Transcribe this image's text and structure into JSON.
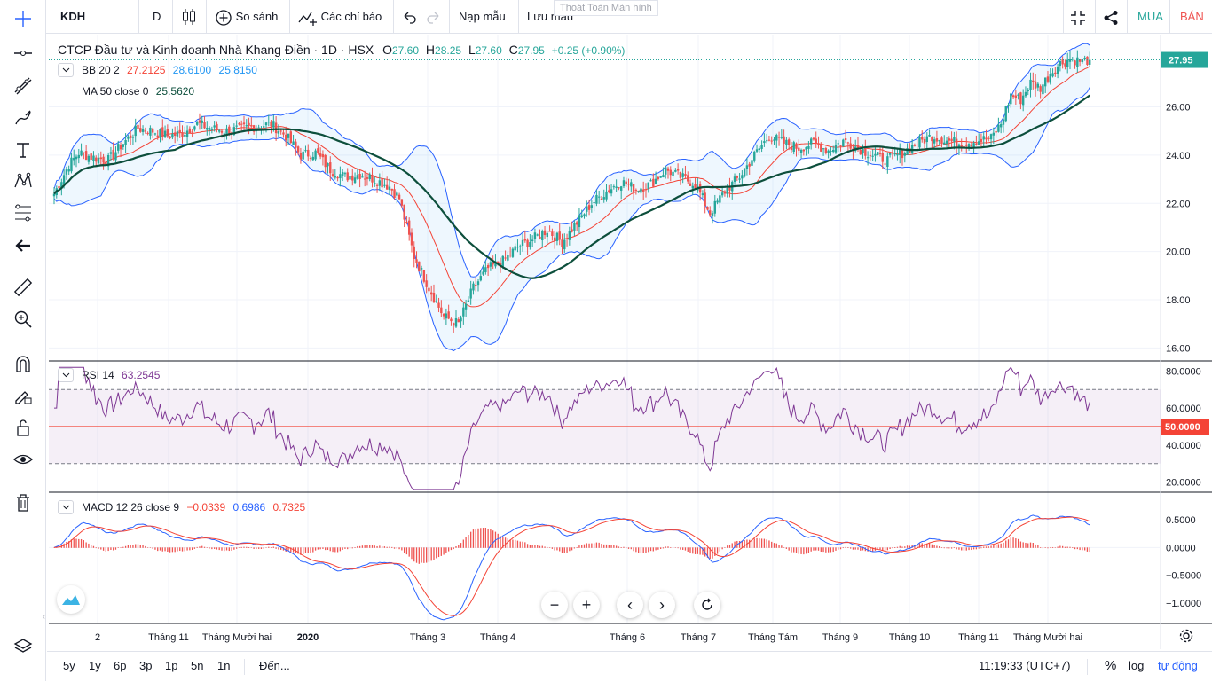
{
  "toolbar": {
    "symbol": "KDH",
    "interval": "D",
    "compare": "So sánh",
    "indicators": "Các chỉ báo",
    "templates": "Nạp mẫu",
    "save": "Lưu mẫu",
    "tooltip_fullscreen": "Thoát Toàn Màn hình",
    "buy": "MUA",
    "sell": "BÁN",
    "colors": {
      "buy": "#26a69a",
      "sell": "#ef5350"
    }
  },
  "left_tools": [
    "crosshair-icon",
    "horizontal-line-icon",
    "trend-tools-icon",
    "brush-icon",
    "text-icon",
    "pattern-icon",
    "fib-icon",
    "back-arrow-icon",
    "ruler-icon",
    "zoom-in-icon",
    "magnet-icon",
    "lock-draw-icon",
    "lock-icon",
    "eye-icon",
    "trash-icon",
    "layers-icon"
  ],
  "legend": {
    "title": "CTCP Đầu tư và Kinh doanh Nhà Khang Điền · 1D · HSX",
    "o_label": "O",
    "o": "27.60",
    "h_label": "H",
    "h": "28.25",
    "l_label": "L",
    "l": "27.60",
    "c_label": "C",
    "c": "27.95",
    "chg": "+0.25 (+0.90%)",
    "bb_name": "BB 20 2",
    "bb_basis": "27.2125",
    "bb_upper": "28.6100",
    "bb_lower": "25.8150",
    "ma_name": "MA 50 close 0",
    "ma_val": "25.5620",
    "rsi_name": "RSI 14",
    "rsi_val": "63.2545",
    "macd_name": "MACD 12 26 close 9",
    "macd_hist": "−0.0339",
    "macd_val": "0.6986",
    "macd_sig": "0.7325"
  },
  "bottom": {
    "ranges": [
      "5y",
      "1y",
      "6p",
      "3p",
      "1p",
      "5n",
      "1n"
    ],
    "goto": "Đến...",
    "clock": "11:19:33 (UTC+7)",
    "pct": "%",
    "log": "log",
    "auto": "tự động"
  },
  "chart_data": {
    "type": "candlestick",
    "title": "CTCP Đầu tư và Kinh doanh Nhà Khang Điền · 1D · HSX",
    "last_price": "27.95",
    "price_axis": {
      "min": 15.5,
      "max": 29.0,
      "ticks": [
        "26.00",
        "24.00",
        "22.00",
        "20.00",
        "18.00",
        "16.00"
      ]
    },
    "x_labels": [
      "2",
      "Tháng 11",
      "Tháng Mười hai",
      "2020",
      "Tháng 3",
      "Tháng 4",
      "Tháng 6",
      "Tháng 7",
      "Tháng Tám",
      "Tháng 9",
      "Tháng 10",
      "Tháng 11",
      "Tháng Mười hai"
    ],
    "close_anchors": [
      [
        0,
        22.4
      ],
      [
        6,
        23.6
      ],
      [
        10,
        24.1
      ],
      [
        16,
        23.9
      ],
      [
        22,
        23.8
      ],
      [
        28,
        24.5
      ],
      [
        34,
        25.1
      ],
      [
        40,
        25.0
      ],
      [
        46,
        24.8
      ],
      [
        52,
        24.9
      ],
      [
        58,
        25.3
      ],
      [
        64,
        25.1
      ],
      [
        70,
        25.0
      ],
      [
        76,
        25.1
      ],
      [
        82,
        25.2
      ],
      [
        88,
        25.3
      ],
      [
        94,
        24.8
      ],
      [
        100,
        24.0
      ],
      [
        106,
        24.1
      ],
      [
        112,
        23.4
      ],
      [
        118,
        23.1
      ],
      [
        124,
        23.2
      ],
      [
        130,
        23.0
      ],
      [
        136,
        22.7
      ],
      [
        140,
        22.2
      ],
      [
        146,
        19.8
      ],
      [
        152,
        18.5
      ],
      [
        158,
        17.3
      ],
      [
        164,
        17.0
      ],
      [
        170,
        18.5
      ],
      [
        176,
        19.3
      ],
      [
        182,
        19.6
      ],
      [
        188,
        20.2
      ],
      [
        194,
        20.5
      ],
      [
        200,
        20.9
      ],
      [
        206,
        20.4
      ],
      [
        212,
        21.2
      ],
      [
        218,
        22.0
      ],
      [
        224,
        22.5
      ],
      [
        230,
        22.9
      ],
      [
        236,
        22.6
      ],
      [
        242,
        22.8
      ],
      [
        248,
        23.4
      ],
      [
        254,
        23.1
      ],
      [
        260,
        22.8
      ],
      [
        266,
        21.6
      ],
      [
        272,
        22.5
      ],
      [
        278,
        23.1
      ],
      [
        284,
        24.0
      ],
      [
        290,
        24.8
      ],
      [
        296,
        24.5
      ],
      [
        302,
        24.3
      ],
      [
        308,
        24.5
      ],
      [
        314,
        24.2
      ],
      [
        320,
        24.6
      ],
      [
        326,
        24.3
      ],
      [
        332,
        24.0
      ],
      [
        338,
        23.8
      ],
      [
        344,
        24.1
      ],
      [
        350,
        24.5
      ],
      [
        356,
        24.8
      ],
      [
        362,
        24.6
      ],
      [
        368,
        24.5
      ],
      [
        374,
        24.6
      ],
      [
        380,
        24.7
      ],
      [
        384,
        25.3
      ],
      [
        388,
        26.5
      ],
      [
        392,
        26.3
      ],
      [
        396,
        27.0
      ],
      [
        400,
        26.8
      ],
      [
        404,
        27.4
      ],
      [
        408,
        27.8
      ],
      [
        412,
        28.0
      ],
      [
        416,
        27.9
      ],
      [
        420,
        27.95
      ]
    ],
    "rsi": {
      "name": "RSI 14",
      "value": 63.2545,
      "ticks": [
        "80.0000",
        "60.0000",
        "40.0000",
        "20.0000"
      ],
      "mid_label": "50.0000",
      "band": [
        30,
        70
      ]
    },
    "macd": {
      "name": "MACD 12 26 close 9",
      "macd": 0.6986,
      "signal": 0.7325,
      "histogram": -0.0339,
      "ticks": [
        "0.5000",
        "0.0000",
        "−0.5000",
        "−1.0000"
      ]
    }
  }
}
